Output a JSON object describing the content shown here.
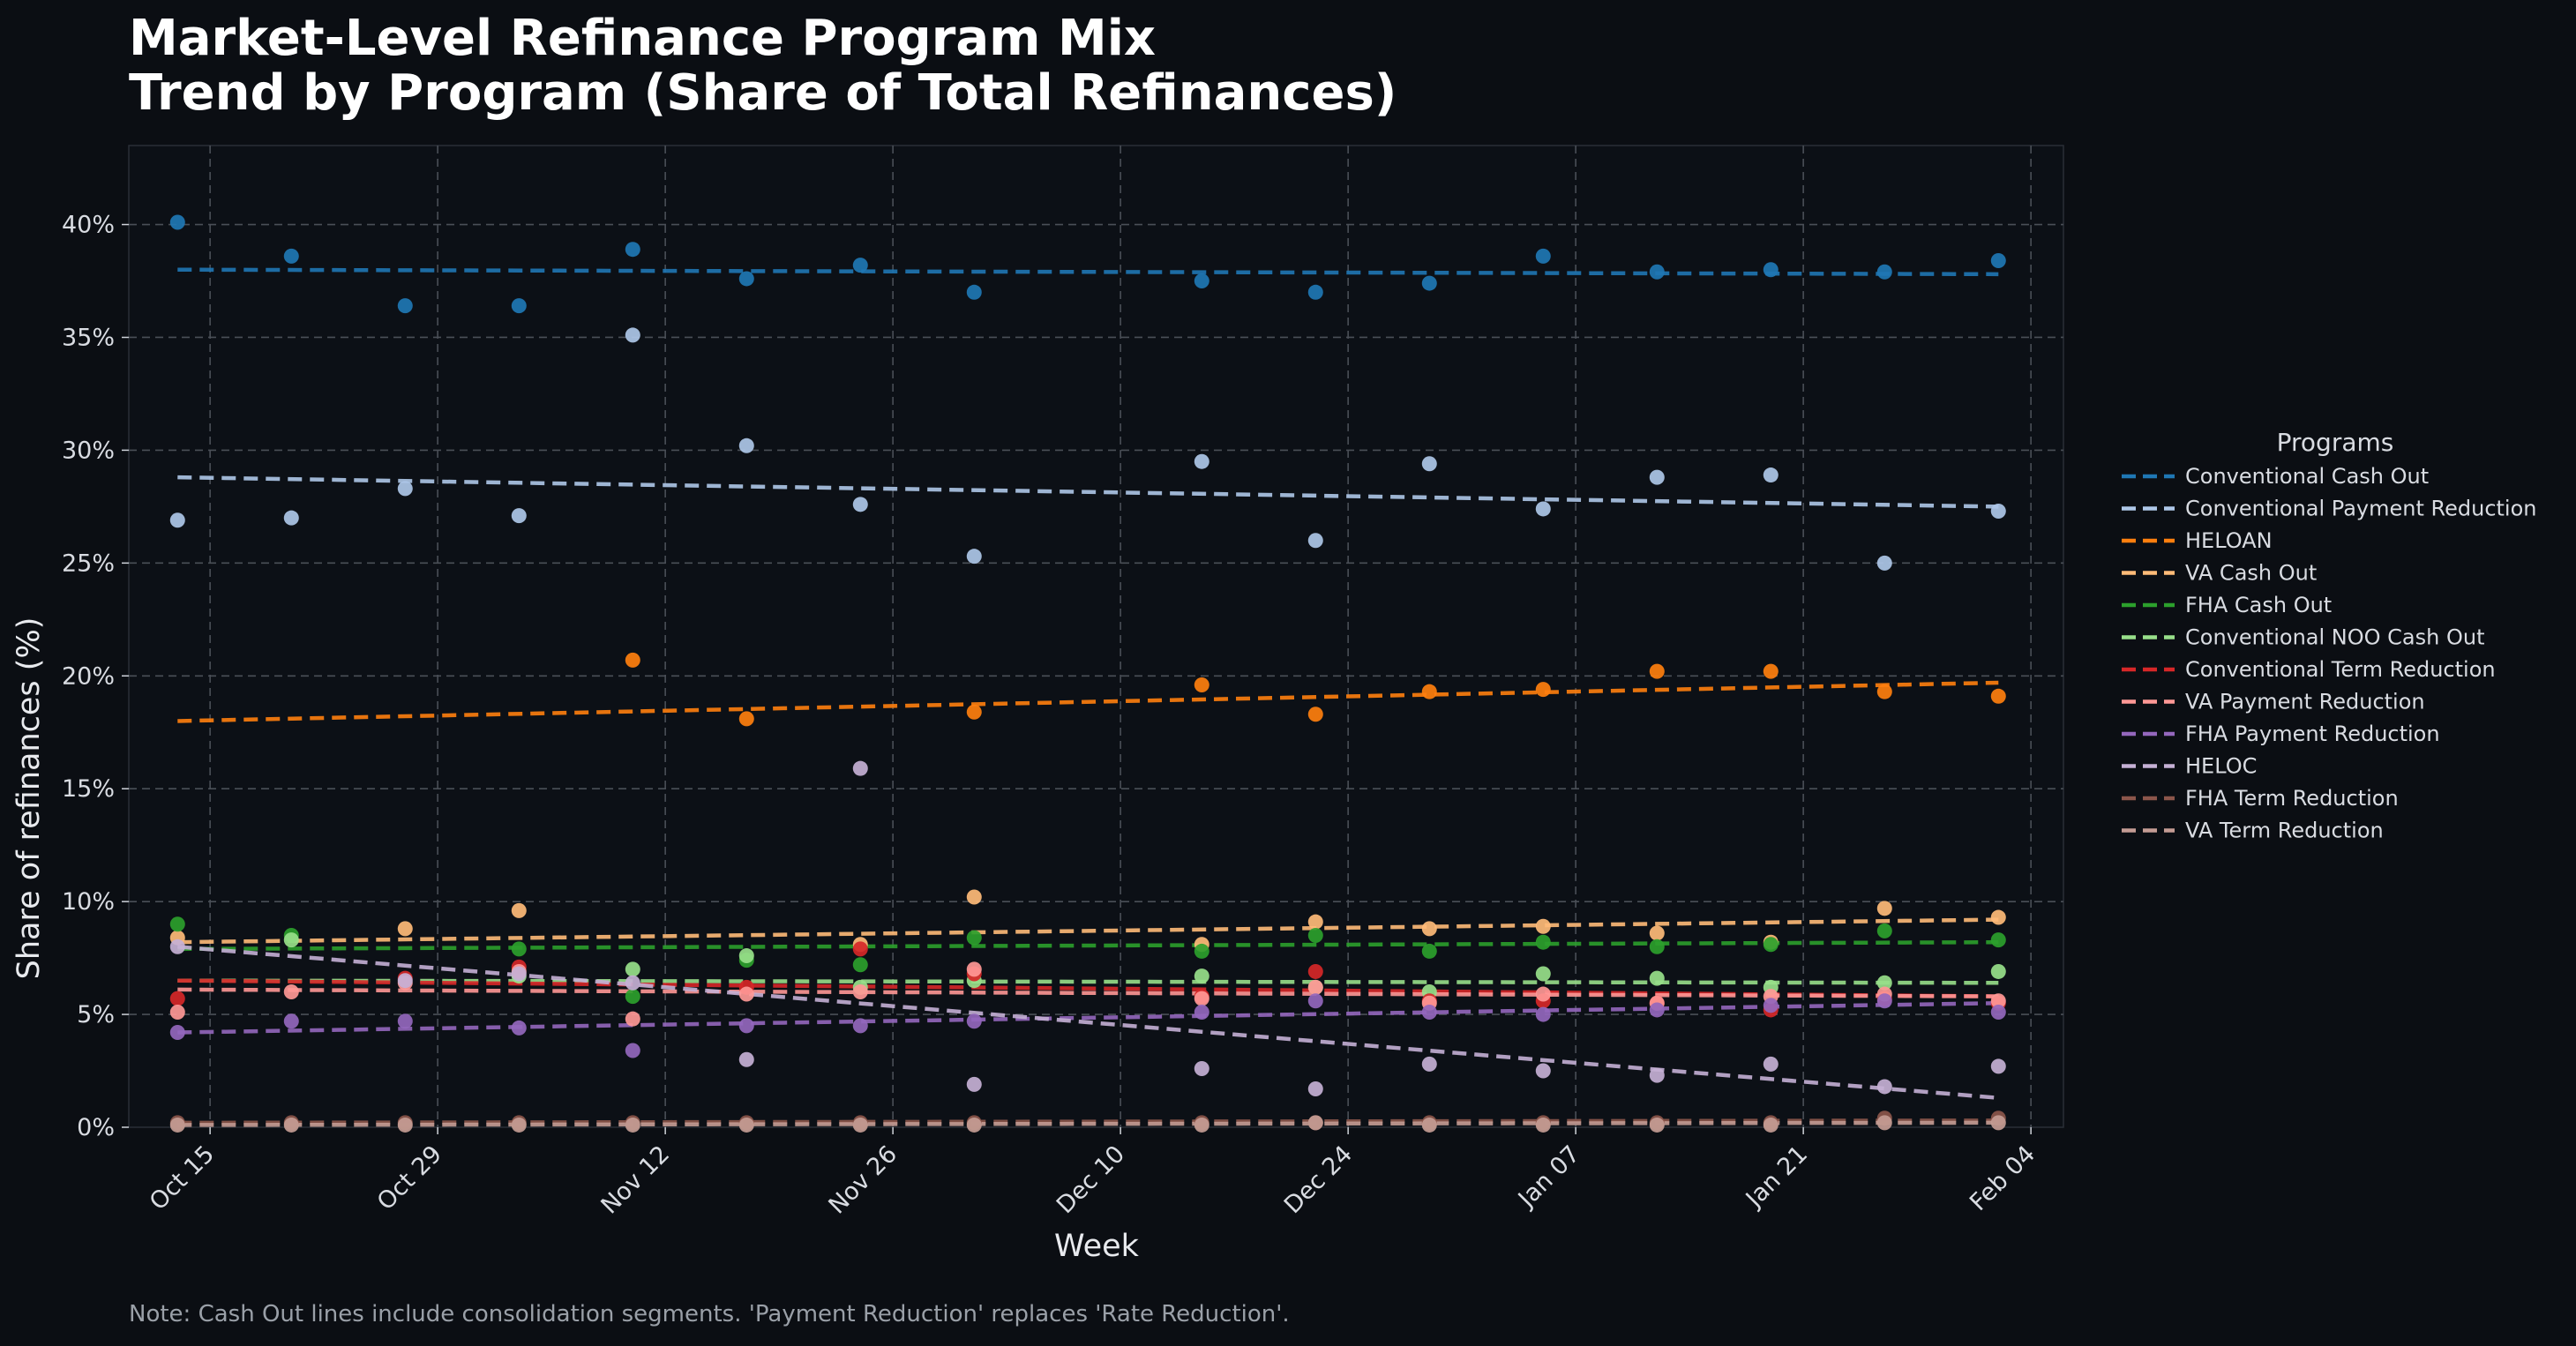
{
  "title_line1": "Market-Level Refinance Program Mix",
  "title_line2": "Trend by Program (Share of Total Refinances)",
  "note": "Note: Cash Out lines include consolidation segments. 'Payment Reduction' replaces 'Rate Reduction'.",
  "chart_data": {
    "type": "scatter",
    "trendlines": "dashed linear fit per series",
    "xlabel": "Week",
    "ylabel": "Share of refinances (%)",
    "xlim": [
      "2023-10-10",
      "2024-02-06"
    ],
    "ylim": [
      0,
      43.5
    ],
    "grid": true,
    "legend_title": "Programs",
    "legend_position": "outside-right",
    "x_ticks": [
      "2023-10-15",
      "2023-10-29",
      "2023-11-12",
      "2023-11-26",
      "2023-12-10",
      "2023-12-24",
      "2024-01-07",
      "2024-01-21",
      "2024-02-04"
    ],
    "x_tick_labels": [
      "Oct 15",
      "Oct 29",
      "Nov 12",
      "Nov 26",
      "Dec 10",
      "Dec 24",
      "Jan 07",
      "Jan 21",
      "Feb 04"
    ],
    "y_ticks": [
      0,
      5,
      10,
      15,
      20,
      25,
      30,
      35,
      40
    ],
    "y_tick_labels": [
      "0%",
      "5%",
      "10%",
      "15%",
      "20%",
      "25%",
      "30%",
      "35%",
      "40%"
    ],
    "x": [
      "2023-10-13",
      "2023-10-20",
      "2023-10-27",
      "2023-11-03",
      "2023-11-10",
      "2023-11-17",
      "2023-11-24",
      "2023-12-01",
      "2023-12-15",
      "2023-12-22",
      "2023-12-29",
      "2024-01-05",
      "2024-01-12",
      "2024-01-19",
      "2024-01-26",
      "2024-02-02"
    ],
    "series": [
      {
        "name": "Conventional Cash Out",
        "color": "#1f77b4",
        "values": [
          40.1,
          38.6,
          36.4,
          36.4,
          38.9,
          37.6,
          38.2,
          37.0,
          37.5,
          37.0,
          37.4,
          38.6,
          37.9,
          38.0,
          37.9,
          38.4
        ],
        "trend": [
          38.0,
          37.8
        ]
      },
      {
        "name": "Conventional Payment Reduction",
        "color": "#aec7e8",
        "values": [
          26.9,
          27.0,
          28.3,
          27.1,
          35.1,
          30.2,
          27.6,
          25.3,
          29.5,
          26.0,
          29.4,
          27.4,
          28.8,
          28.9,
          25.0,
          27.3
        ],
        "trend": [
          28.8,
          27.5
        ]
      },
      {
        "name": "HELOAN",
        "color": "#ff7f0e",
        "values": [
          null,
          null,
          null,
          null,
          20.7,
          18.1,
          null,
          18.4,
          19.6,
          18.3,
          19.3,
          19.4,
          20.2,
          20.2,
          19.3,
          19.1
        ],
        "trend": [
          18.0,
          19.7
        ]
      },
      {
        "name": "VA Cash Out",
        "color": "#ffbb78",
        "values": [
          8.4,
          null,
          8.8,
          9.6,
          null,
          null,
          8.1,
          10.2,
          8.1,
          9.1,
          8.8,
          8.9,
          8.6,
          8.2,
          9.7,
          9.3
        ],
        "trend": [
          8.2,
          9.2
        ]
      },
      {
        "name": "FHA Cash Out",
        "color": "#2ca02c",
        "values": [
          9.0,
          8.5,
          null,
          7.9,
          5.8,
          7.4,
          7.2,
          8.4,
          7.8,
          8.5,
          7.8,
          8.2,
          8.0,
          8.1,
          8.7,
          8.3
        ],
        "trend": [
          7.9,
          8.2
        ]
      },
      {
        "name": "Conventional NOO Cash Out",
        "color": "#98df8a",
        "values": [
          null,
          8.3,
          null,
          6.7,
          7.0,
          7.6,
          6.2,
          6.5,
          6.7,
          6.2,
          6.0,
          6.8,
          6.6,
          6.2,
          6.4,
          6.9
        ],
        "trend": [
          6.5,
          6.4
        ]
      },
      {
        "name": "Conventional Term Reduction",
        "color": "#d62728",
        "values": [
          5.7,
          null,
          6.6,
          7.1,
          null,
          6.2,
          7.9,
          6.8,
          5.8,
          6.9,
          5.6,
          5.6,
          5.5,
          5.2,
          5.7,
          5.5
        ],
        "trend": [
          6.5,
          5.8
        ]
      },
      {
        "name": "VA Payment Reduction",
        "color": "#ff9896",
        "values": [
          5.1,
          6.0,
          6.4,
          6.9,
          4.8,
          5.9,
          6.0,
          7.0,
          5.7,
          6.2,
          5.5,
          5.9,
          5.5,
          5.8,
          5.9,
          5.6
        ],
        "trend": [
          6.1,
          5.8
        ]
      },
      {
        "name": "FHA Payment Reduction",
        "color": "#9467bd",
        "values": [
          4.2,
          4.7,
          4.7,
          4.4,
          3.4,
          4.5,
          4.5,
          4.7,
          5.1,
          5.6,
          5.1,
          5.0,
          5.2,
          5.4,
          5.6,
          5.1
        ],
        "trend": [
          4.2,
          5.5
        ]
      },
      {
        "name": "HELOC",
        "color": "#c5b0d5",
        "values": [
          8.0,
          null,
          6.5,
          6.8,
          6.4,
          3.0,
          15.9,
          1.9,
          2.6,
          1.7,
          2.8,
          2.5,
          2.3,
          2.8,
          1.8,
          2.7
        ],
        "trend": [
          8.0,
          1.3
        ]
      },
      {
        "name": "FHA Term Reduction",
        "color": "#8c564b",
        "values": [
          0.2,
          0.2,
          0.2,
          0.2,
          0.2,
          0.2,
          0.2,
          0.2,
          0.2,
          0.2,
          0.2,
          0.2,
          0.2,
          0.2,
          0.4,
          0.4
        ],
        "trend": [
          0.2,
          0.3
        ]
      },
      {
        "name": "VA Term Reduction",
        "color": "#c49c94",
        "values": [
          0.1,
          0.1,
          0.1,
          0.1,
          0.1,
          0.1,
          0.1,
          0.1,
          0.1,
          0.2,
          0.1,
          0.1,
          0.1,
          0.1,
          0.2,
          0.2
        ],
        "trend": [
          0.1,
          0.2
        ]
      }
    ]
  }
}
